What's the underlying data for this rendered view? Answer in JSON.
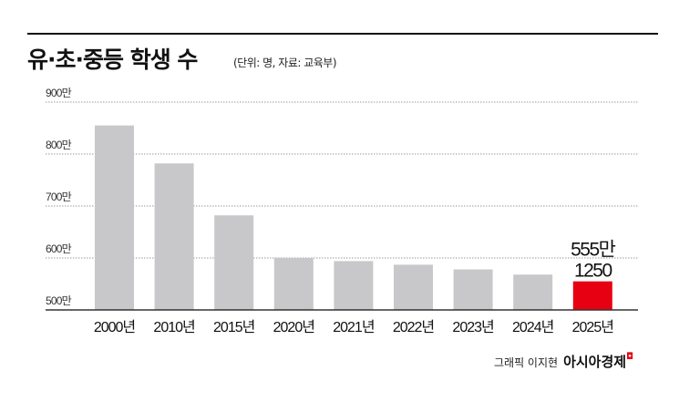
{
  "title": "유·초·중등 학생 수",
  "subtitle": "(단위: 명, 자료: 교육부)",
  "credit": {
    "graphic": "그래픽 이지현",
    "brand": "아시아경제"
  },
  "colors": {
    "bar": "#c8c8ca",
    "highlight": "#e60012",
    "grid": "#999999"
  },
  "chart_data": {
    "type": "bar",
    "categories": [
      "2000년",
      "2010년",
      "2015년",
      "2020년",
      "2021년",
      "2022년",
      "2023년",
      "2024년",
      "2025년"
    ],
    "values": [
      855,
      782,
      682,
      600,
      594,
      587,
      578,
      568,
      555
    ],
    "unit": "만",
    "ylim": [
      500,
      900
    ],
    "yticks": [
      "500만",
      "600만",
      "700만",
      "800만",
      "900만"
    ],
    "grid": true,
    "annotation": {
      "category": "2025년",
      "line1": "555만",
      "line2": "1250"
    }
  }
}
